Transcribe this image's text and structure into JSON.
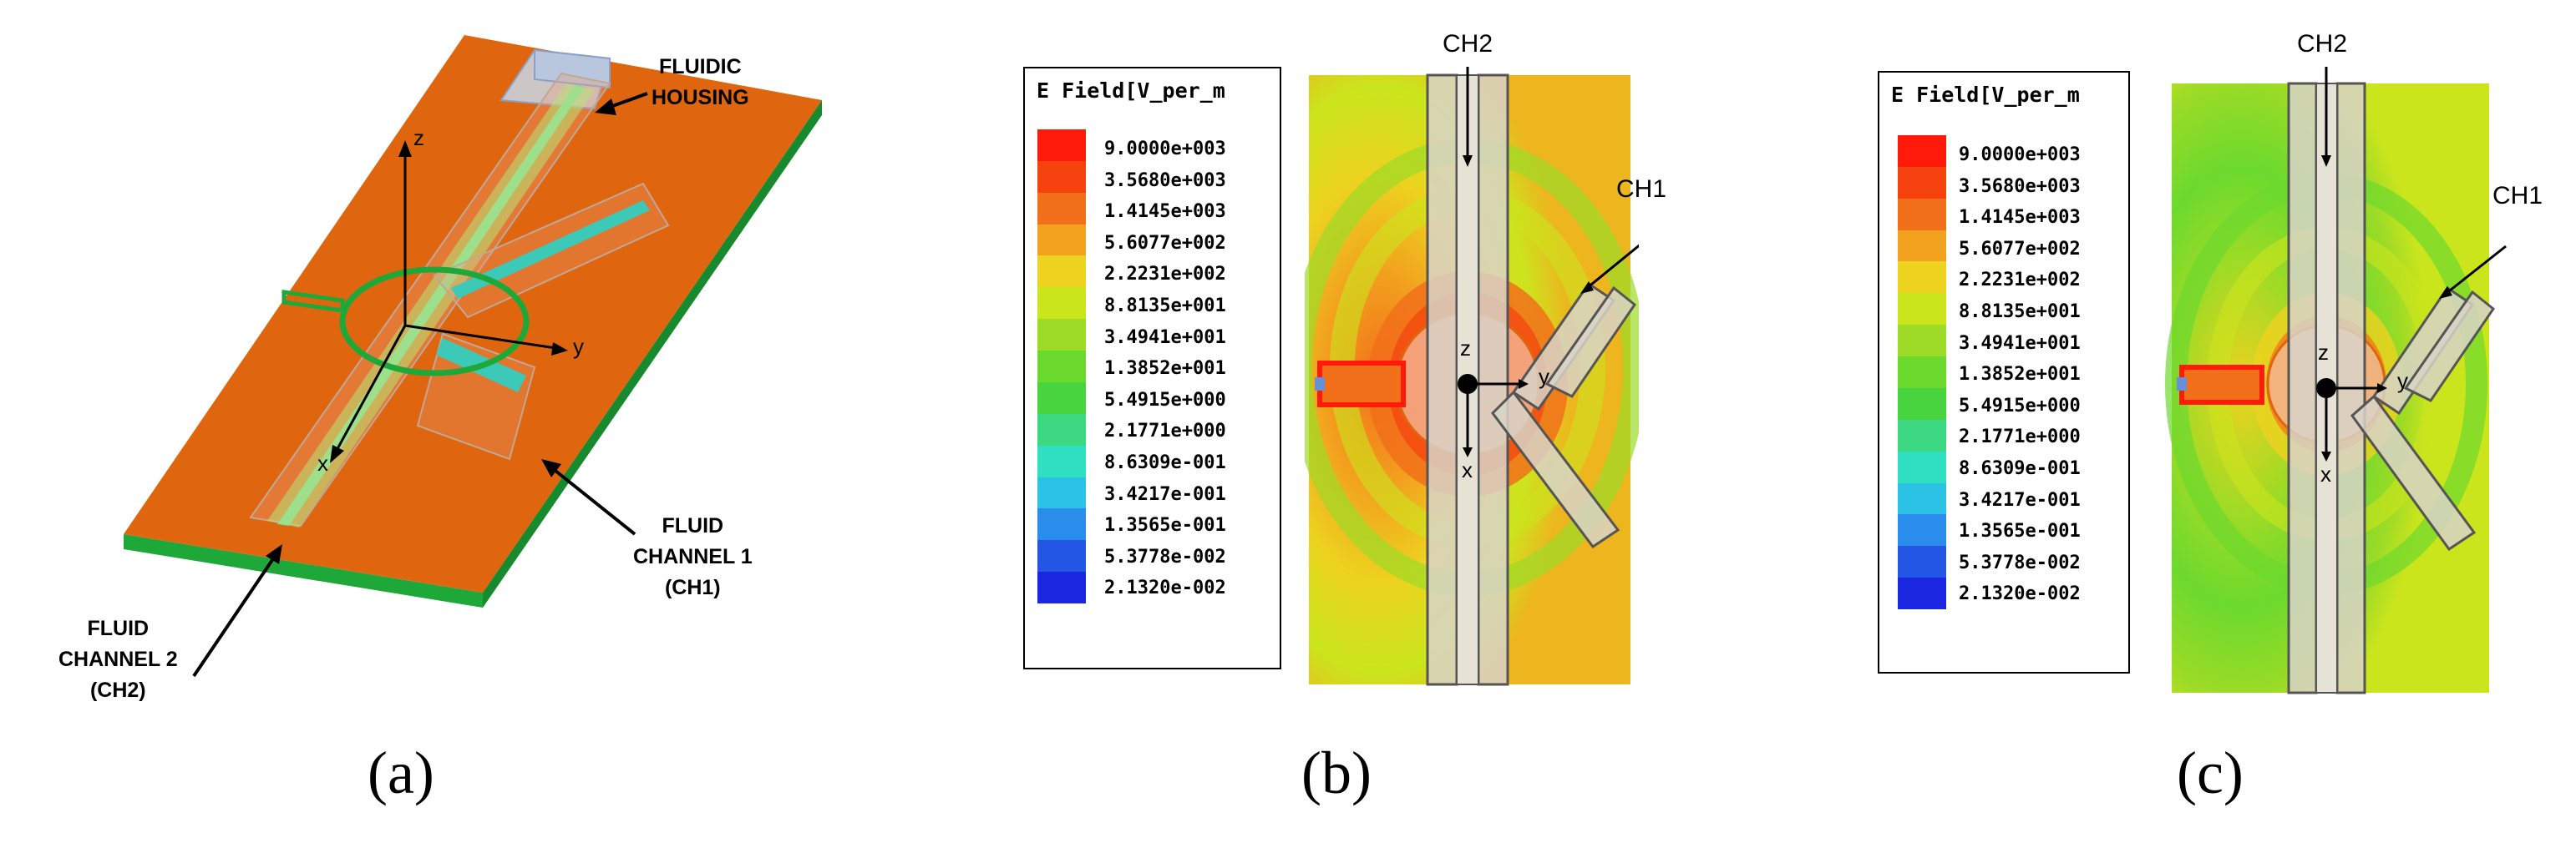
{
  "panel_a": {
    "caption": "(a)",
    "labels": {
      "fluidic_housing": [
        "FLUIDIC",
        "HOUSING"
      ],
      "fluid_channel_1": [
        "FLUID",
        "CHANNEL 1",
        "(CH1)"
      ],
      "fluid_channel_2": [
        "FLUID",
        "CHANNEL 2",
        "(CH2)"
      ],
      "axis_z": "z",
      "axis_y": "y",
      "axis_x": "x"
    },
    "colors": {
      "substrate": "#E0650F",
      "substrate_edge": "#1FA83A",
      "fluid": "#3CC9B8"
    }
  },
  "legend": {
    "title": "E Field[V_per_m",
    "values": [
      "9.0000e+003",
      "3.5680e+003",
      "1.4145e+003",
      "5.6077e+002",
      "2.2231e+002",
      "8.8135e+001",
      "3.4941e+001",
      "1.3852e+001",
      "5.4915e+000",
      "2.1771e+000",
      "8.6309e-001",
      "3.4217e-001",
      "1.3565e-001",
      "5.3778e-002",
      "2.1320e-002"
    ],
    "colors": [
      "#FF1A0A",
      "#F5420E",
      "#F2701A",
      "#F2A21E",
      "#EDD21F",
      "#CBE51D",
      "#9DDB26",
      "#6CD92E",
      "#47D43F",
      "#3CD882",
      "#2FDFC2",
      "#2BC2E5",
      "#2A8DEB",
      "#2456E6",
      "#1A26E0"
    ]
  },
  "panel_b": {
    "caption": "(b)",
    "labels": {
      "ch2": "CH2",
      "ch1": "CH1",
      "axis_z": "z",
      "axis_y": "y",
      "axis_x": "x"
    }
  },
  "panel_c": {
    "caption": "(c)",
    "labels": {
      "ch2": "CH2",
      "ch1": "CH1",
      "axis_z": "z",
      "axis_y": "y",
      "axis_x": "x"
    }
  }
}
